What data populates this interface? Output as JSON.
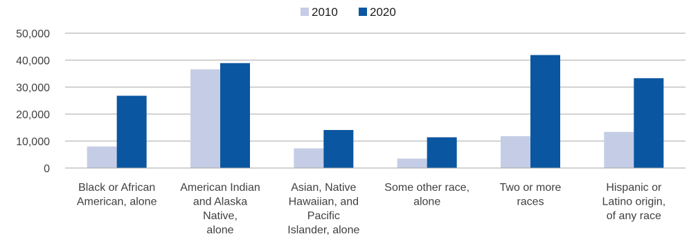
{
  "chart_data": {
    "type": "bar",
    "categories": [
      [
        "Black or African",
        "American, alone"
      ],
      [
        "American Indian",
        "and Alaska",
        "Native,",
        "alone"
      ],
      [
        "Asian, Native",
        "Hawaiian, and",
        "Pacific",
        "Islander, alone"
      ],
      [
        "Some other race,",
        "alone"
      ],
      [
        "Two or more",
        "races"
      ],
      [
        "Hispanic or",
        "Latino origin,",
        "of any race"
      ]
    ],
    "series": [
      {
        "name": "2010",
        "color": "#c5cde6",
        "values": [
          8000,
          36600,
          7300,
          3500,
          11800,
          13400
        ]
      },
      {
        "name": "2020",
        "color": "#0b56a0",
        "values": [
          26800,
          38900,
          14100,
          11400,
          41900,
          33300
        ]
      }
    ],
    "ylim": [
      0,
      50000
    ],
    "yticks": [
      "0",
      "10,000",
      "20,000",
      "30,000",
      "40,000",
      "50,000"
    ],
    "grid": true,
    "legend_position": "top-center",
    "grid_color": "#a6a6a6"
  }
}
